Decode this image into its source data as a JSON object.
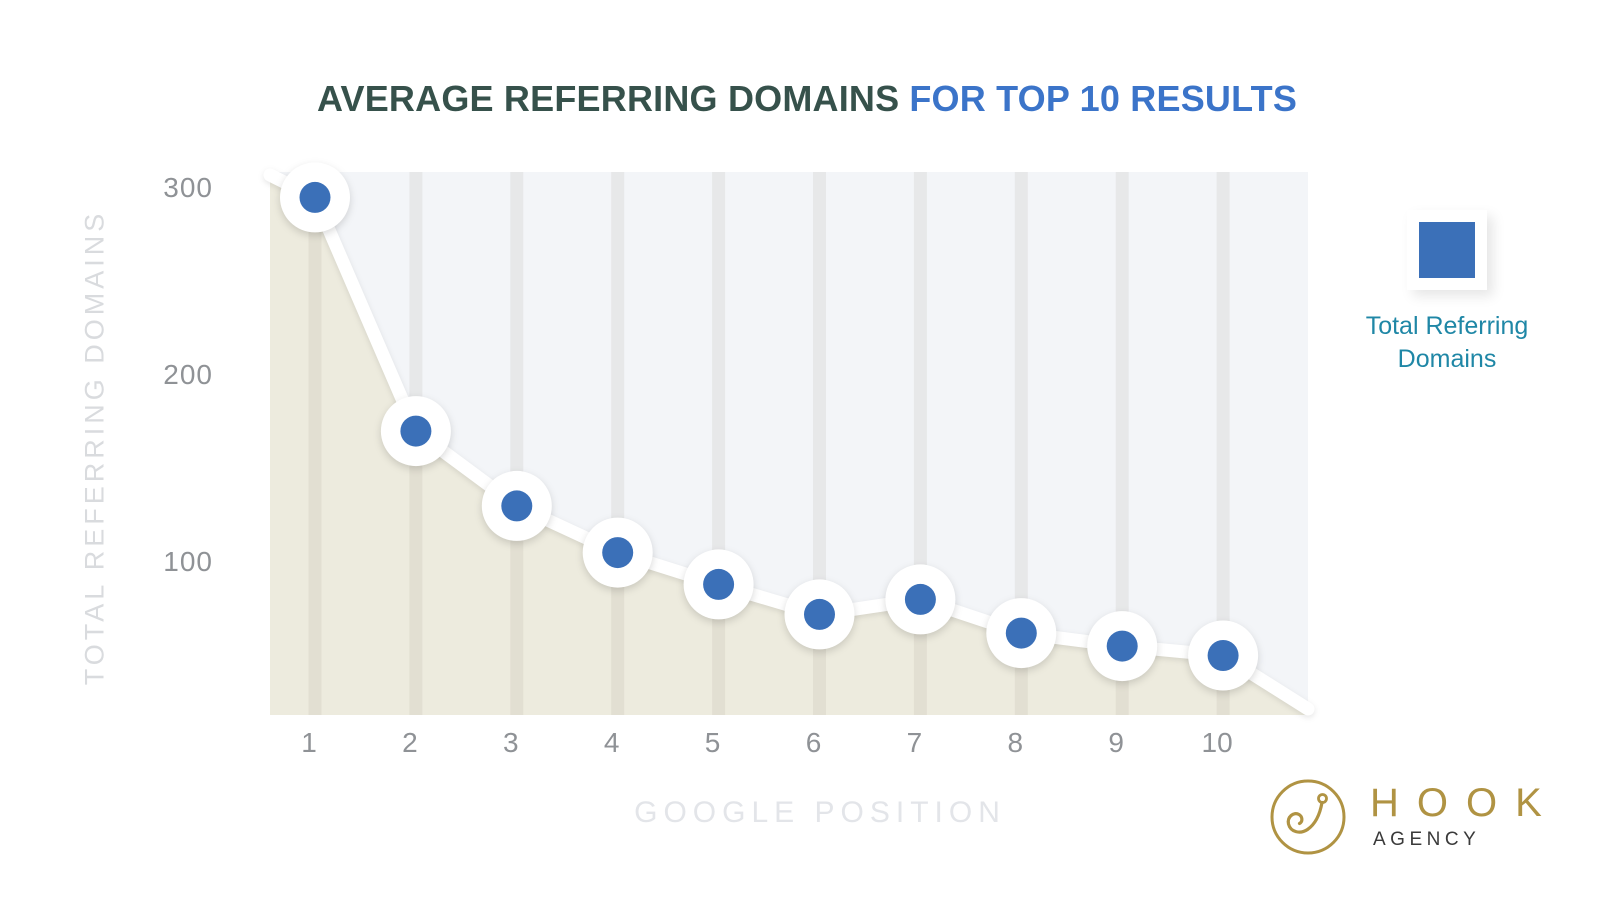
{
  "title": {
    "main": "AVERAGE REFERRING DOMAINS",
    "highlight": "FOR TOP 10 RESULTS"
  },
  "chart_data": {
    "type": "area",
    "title": "AVERAGE REFERRING DOMAINS FOR TOP 10 RESULTS",
    "x": [
      1,
      2,
      3,
      4,
      5,
      6,
      7,
      8,
      9,
      10
    ],
    "categories": [
      "1",
      "2",
      "3",
      "4",
      "5",
      "6",
      "7",
      "8",
      "9",
      "10"
    ],
    "series": [
      {
        "name": "Total Referring Domains",
        "values": [
          295,
          170,
          130,
          105,
          88,
          72,
          80,
          62,
          55,
          50
        ]
      }
    ],
    "xlabel": "GOOGLE POSITION",
    "ylabel": "TOTAL REFERRING DOMAINS",
    "yticks": [
      300,
      200,
      100
    ],
    "ylim": [
      0,
      310
    ],
    "grid": "vertical",
    "legend_position": "right"
  },
  "legend": {
    "label": "Total Referring Domains"
  },
  "logo": {
    "name": "HOOK",
    "subtitle": "AGENCY"
  },
  "colors": {
    "title_dark": "#36514b",
    "title_blue": "#3b74c9",
    "point_blue": "#3b70b8",
    "area_beige": "#edebde",
    "plot_bg": "#f3f5f8",
    "gridline": "#a09e8c",
    "line_white": "#ffffff",
    "legend_teal": "#1f87a6",
    "tick_gray": "#8f9296",
    "faded_gray": "#dcdee2",
    "logo_gold": "#b09343"
  }
}
